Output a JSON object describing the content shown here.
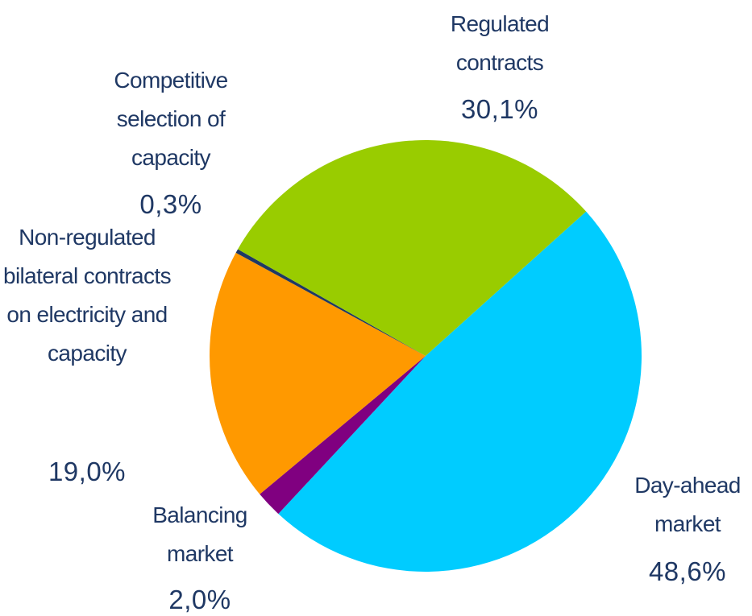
{
  "chart_data": {
    "type": "pie",
    "categories": [
      "Day-ahead market",
      "Balancing market",
      "Non-regulated bilateral contracts on electricity and capacity",
      "Competitive selection of capacity",
      "Regulated contracts"
    ],
    "values": [
      48.6,
      2.0,
      19.0,
      0.3,
      30.1
    ],
    "value_labels": [
      "48,6%",
      "2,0%",
      "19,0%",
      "0,3%",
      "30,1%"
    ],
    "colors": [
      "#00ccff",
      "#800080",
      "#ff9900",
      "#1f3864",
      "#99cc00"
    ]
  }
}
